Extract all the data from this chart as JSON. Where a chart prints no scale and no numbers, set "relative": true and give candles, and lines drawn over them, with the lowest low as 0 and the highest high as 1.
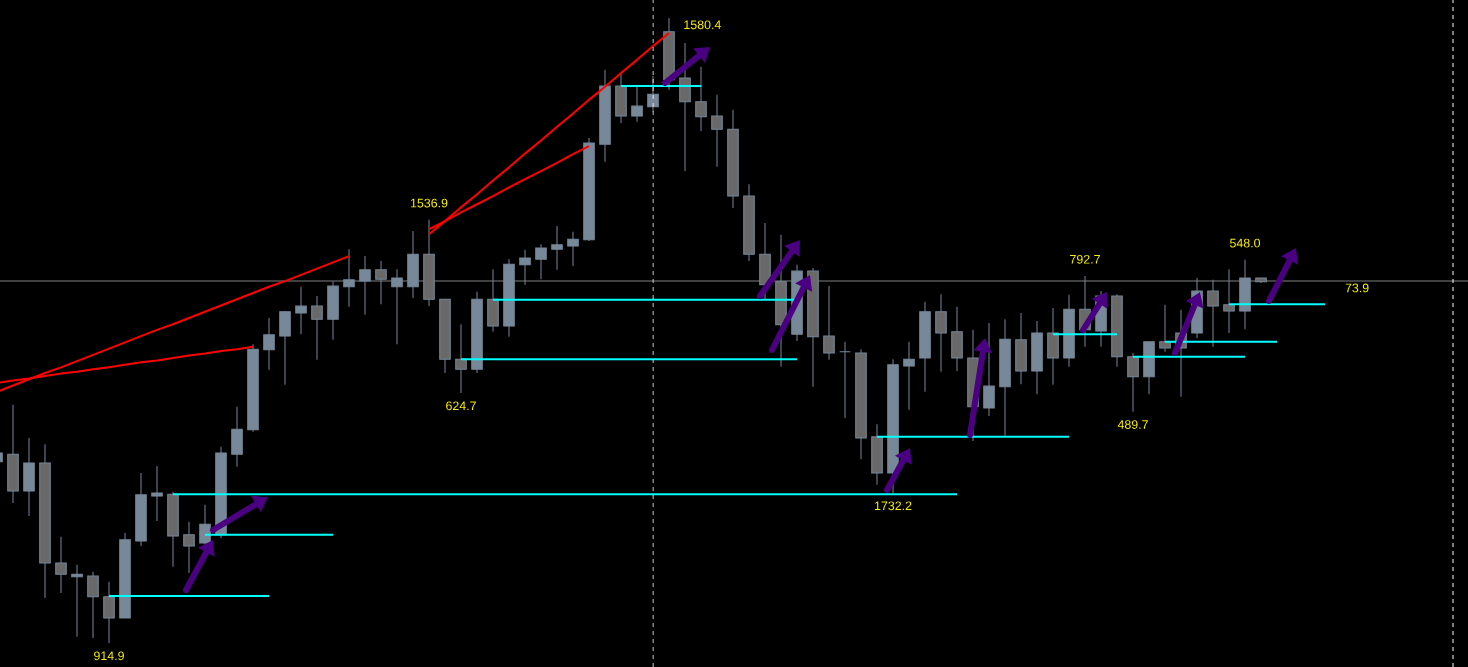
{
  "chart_data": {
    "type": "candlestick",
    "relative": true,
    "tick_labels": false,
    "categories": [
      null,
      null,
      null,
      null,
      null,
      null,
      null,
      null,
      null,
      null,
      null,
      null,
      null,
      null,
      null,
      null,
      null,
      null,
      null,
      null,
      null,
      null,
      null,
      null,
      null,
      null,
      null,
      null,
      null,
      null,
      null,
      null,
      null,
      null,
      null,
      null,
      null,
      null,
      null,
      null,
      null,
      null,
      null,
      null,
      null,
      null,
      null,
      null,
      null,
      null,
      null,
      null,
      null,
      null,
      null,
      null,
      null,
      null,
      null,
      null,
      null,
      null,
      null,
      null,
      null,
      null,
      null,
      null,
      null,
      null,
      null,
      null,
      null,
      null,
      null,
      null,
      null,
      null,
      null,
      null,
      null,
      null,
      null,
      null
    ],
    "ohlc": [
      [
        0.29,
        0.304,
        0.29,
        0.304
      ],
      [
        0.302,
        0.381,
        0.224,
        0.243
      ],
      [
        0.243,
        0.328,
        0.203,
        0.288
      ],
      [
        0.288,
        0.318,
        0.072,
        0.128
      ],
      [
        0.128,
        0.17,
        0.08,
        0.11
      ],
      [
        0.106,
        0.125,
        0.01,
        0.11
      ],
      [
        0.107,
        0.114,
        0.008,
        0.074
      ],
      [
        0.074,
        0.098,
        0,
        0.04
      ],
      [
        0.04,
        0.176,
        0.04,
        0.165
      ],
      [
        0.163,
        0.272,
        0.155,
        0.237
      ],
      [
        0.235,
        0.283,
        0.195,
        0.24
      ],
      [
        0.238,
        0.242,
        0.122,
        0.171
      ],
      [
        0.173,
        0.194,
        0.112,
        0.155
      ],
      [
        0.16,
        0.221,
        0.157,
        0.19
      ],
      [
        0.173,
        0.314,
        0.168,
        0.304
      ],
      [
        0.302,
        0.378,
        0.282,
        0.342
      ],
      [
        0.341,
        0.478,
        0.338,
        0.47
      ],
      [
        0.469,
        0.52,
        0.437,
        0.493
      ],
      [
        0.491,
        0.531,
        0.413,
        0.53
      ],
      [
        0.528,
        0.57,
        0.494,
        0.539
      ],
      [
        0.539,
        0.555,
        0.453,
        0.518
      ],
      [
        0.518,
        0.578,
        0.485,
        0.571
      ],
      [
        0.57,
        0.63,
        0.538,
        0.581
      ],
      [
        0.579,
        0.619,
        0.525,
        0.597
      ],
      [
        0.597,
        0.611,
        0.542,
        0.582
      ],
      [
        0.57,
        0.598,
        0.478,
        0.584
      ],
      [
        0.57,
        0.659,
        0.552,
        0.622
      ],
      [
        0.622,
        0.677,
        0.539,
        0.55
      ],
      [
        0.55,
        0.55,
        0.432,
        0.454
      ],
      [
        0.454,
        0.51,
        0.4,
        0.438
      ],
      [
        0.438,
        0.562,
        0.432,
        0.55
      ],
      [
        0.55,
        0.598,
        0.498,
        0.507
      ],
      [
        0.507,
        0.614,
        0.49,
        0.606
      ],
      [
        0.605,
        0.629,
        0.573,
        0.616
      ],
      [
        0.614,
        0.638,
        0.582,
        0.632
      ],
      [
        0.63,
        0.667,
        0.597,
        0.637
      ],
      [
        0.635,
        0.658,
        0.603,
        0.646
      ],
      [
        0.645,
        0.808,
        0.643,
        0.8
      ],
      [
        0.798,
        0.917,
        0.77,
        0.891
      ],
      [
        0.891,
        0.912,
        0.832,
        0.843
      ],
      [
        0.843,
        0.89,
        0.834,
        0.859
      ],
      [
        0.858,
        0.907,
        0.85,
        0.878
      ],
      [
        0.978,
        1,
        0.885,
        0.901
      ],
      [
        0.904,
        0.96,
        0.755,
        0.866
      ],
      [
        0.866,
        0.922,
        0.819,
        0.842
      ],
      [
        0.843,
        0.877,
        0.762,
        0.822
      ],
      [
        0.822,
        0.853,
        0.696,
        0.715
      ],
      [
        0.715,
        0.734,
        0.611,
        0.622
      ],
      [
        0.622,
        0.672,
        0.549,
        0.573
      ],
      [
        0.578,
        0.653,
        0.442,
        0.509
      ],
      [
        0.494,
        0.605,
        0.483,
        0.595
      ],
      [
        0.595,
        0.6,
        0.41,
        0.49
      ],
      [
        0.491,
        0.571,
        0.453,
        0.464
      ],
      [
        0.466,
        0.482,
        0.36,
        0.466
      ],
      [
        0.464,
        0.47,
        0.294,
        0.328
      ],
      [
        0.33,
        0.35,
        0.253,
        0.272
      ],
      [
        0.272,
        0.454,
        0.24,
        0.445
      ],
      [
        0.443,
        0.482,
        0.373,
        0.454
      ],
      [
        0.456,
        0.546,
        0.402,
        0.53
      ],
      [
        0.53,
        0.558,
        0.434,
        0.496
      ],
      [
        0.498,
        0.538,
        0.435,
        0.456
      ],
      [
        0.456,
        0.501,
        0.323,
        0.378
      ],
      [
        0.376,
        0.512,
        0.363,
        0.411
      ],
      [
        0.41,
        0.518,
        0.331,
        0.486
      ],
      [
        0.485,
        0.528,
        0.414,
        0.435
      ],
      [
        0.435,
        0.515,
        0.398,
        0.496
      ],
      [
        0.496,
        0.536,
        0.413,
        0.456
      ],
      [
        0.456,
        0.557,
        0.442,
        0.534
      ],
      [
        0.534,
        0.587,
        0.474,
        0.501
      ],
      [
        0.499,
        0.563,
        0.474,
        0.555
      ],
      [
        0.555,
        0.558,
        0.442,
        0.458
      ],
      [
        0.458,
        0.464,
        0.37,
        0.426
      ],
      [
        0.426,
        0.482,
        0.398,
        0.482
      ],
      [
        0.482,
        0.541,
        0.466,
        0.472
      ],
      [
        0.496,
        0.533,
        0.394,
        0.472
      ],
      [
        0.496,
        0.584,
        0.488,
        0.563
      ],
      [
        0.563,
        0.581,
        0.474,
        0.539
      ],
      [
        0.541,
        0.598,
        0.496,
        0.531
      ],
      [
        0.531,
        0.613,
        0.502,
        0.584
      ],
      [
        0.584,
        0.584,
        0.576,
        0.578
      ],
      null,
      null,
      null,
      null
    ],
    "color": "#778899",
    "colors": [
      "#778899",
      "#696969",
      "#778899",
      "#696969",
      "#696969",
      "#778899",
      "#696969",
      "#696969",
      "#778899",
      "#778899",
      "#778899",
      "#696969",
      "#696969",
      "#778899",
      "#778899",
      "#778899",
      "#778899",
      "#778899",
      "#778899",
      "#778899",
      "#696969",
      "#778899",
      "#778899",
      "#778899",
      "#696969",
      "#778899",
      "#778899",
      "#696969",
      "#696969",
      "#696969",
      "#778899",
      "#696969",
      "#778899",
      "#778899",
      "#778899",
      "#778899",
      "#778899",
      "#778899",
      "#778899",
      "#696969",
      "#778899",
      "#778899",
      "#696969",
      "#696969",
      "#696969",
      "#696969",
      "#696969",
      "#696969",
      "#696969",
      "#696969",
      "#778899",
      "#696969",
      "#696969",
      "#778899",
      "#696969",
      "#696969",
      "#778899",
      "#778899",
      "#778899",
      "#696969",
      "#696969",
      "#696969",
      "#778899",
      "#778899",
      "#696969",
      "#778899",
      "#696969",
      "#778899",
      "#696969",
      "#778899",
      "#696969",
      "#696969",
      "#778899",
      "#696969",
      "#696969",
      "#778899",
      "#696969",
      "#696969",
      "#778899",
      "#696969",
      null,
      null,
      null,
      null
    ],
    "series": [
      {
        "type": "line",
        "color": "#00ffff",
        "values": [
          null,
          null,
          null,
          null,
          null,
          null,
          null,
          0.075,
          0.075,
          0.075,
          0.075,
          0.075,
          0.075,
          0.075,
          0.075,
          0.075,
          0.075,
          0.075,
          null,
          null,
          null,
          null,
          null,
          null,
          null,
          null,
          null,
          null,
          null,
          null,
          null,
          null,
          null,
          null,
          null,
          null,
          null,
          null,
          null,
          null,
          null,
          null,
          null,
          null,
          null,
          null,
          null,
          null,
          null,
          null,
          null,
          null,
          null,
          null,
          null,
          null,
          null,
          null,
          null,
          null,
          null,
          null,
          null,
          null,
          null,
          null,
          null,
          null,
          null,
          null,
          null,
          null,
          null,
          null,
          null,
          null,
          null,
          null,
          null,
          null,
          null,
          null,
          null,
          null
        ]
      },
      {
        "type": "line",
        "color": "#00ffff",
        "values": [
          null,
          null,
          null,
          null,
          null,
          null,
          null,
          null,
          null,
          null,
          null,
          null,
          null,
          0.173,
          0.173,
          0.173,
          0.173,
          0.173,
          0.173,
          0.173,
          0.173,
          0.173,
          null,
          null,
          null,
          null,
          null,
          null,
          null,
          null,
          null,
          null,
          null,
          null,
          null,
          null,
          null,
          null,
          null,
          null,
          null,
          null,
          null,
          null,
          null,
          null,
          null,
          null,
          null,
          null,
          null,
          null,
          null,
          null,
          null,
          null,
          null,
          null,
          null,
          null,
          null,
          null,
          null,
          null,
          null,
          null,
          null,
          null,
          null,
          null,
          null,
          null,
          null,
          null,
          null,
          null,
          null,
          null,
          null,
          null,
          null,
          null,
          null,
          null
        ]
      },
      {
        "type": "line",
        "color": "#00ffff",
        "values": [
          null,
          null,
          null,
          null,
          null,
          null,
          null,
          null,
          null,
          null,
          null,
          0.238,
          0.238,
          0.238,
          0.238,
          0.238,
          0.238,
          0.238,
          0.238,
          0.238,
          0.238,
          0.238,
          0.238,
          0.238,
          0.238,
          0.238,
          0.238,
          0.238,
          0.238,
          0.238,
          0.238,
          0.238,
          0.238,
          0.238,
          0.238,
          0.238,
          0.238,
          0.238,
          0.238,
          0.238,
          0.238,
          0.238,
          0.238,
          0.238,
          0.238,
          0.238,
          0.238,
          0.238,
          0.238,
          0.238,
          0.238,
          0.238,
          0.238,
          0.238,
          0.238,
          0.238,
          0.238,
          0.238,
          0.238,
          0.238,
          0.238,
          null,
          null,
          null,
          null,
          null,
          null,
          null,
          null,
          null,
          null,
          null,
          null,
          null,
          null,
          null,
          null,
          null,
          null,
          null,
          null,
          null,
          null,
          null
        ]
      },
      {
        "type": "line",
        "color": "#00ffff",
        "values": [
          null,
          null,
          null,
          null,
          null,
          null,
          null,
          null,
          null,
          null,
          null,
          null,
          null,
          null,
          null,
          null,
          null,
          null,
          null,
          null,
          null,
          null,
          null,
          null,
          null,
          null,
          null,
          null,
          null,
          0.454,
          0.454,
          0.454,
          0.454,
          0.454,
          0.454,
          0.454,
          0.454,
          0.454,
          0.454,
          0.454,
          0.454,
          0.454,
          0.454,
          0.454,
          0.454,
          0.454,
          0.454,
          0.454,
          0.454,
          0.454,
          0.454,
          null,
          null,
          null,
          null,
          null,
          null,
          null,
          null,
          null,
          null,
          null,
          null,
          null,
          null,
          null,
          null,
          null,
          null,
          null,
          null,
          null,
          null,
          null,
          null,
          null,
          null,
          null,
          null,
          null,
          null,
          null,
          null,
          null
        ]
      },
      {
        "type": "line",
        "color": "#00ffff",
        "values": [
          null,
          null,
          null,
          null,
          null,
          null,
          null,
          null,
          null,
          null,
          null,
          null,
          null,
          null,
          null,
          null,
          null,
          null,
          null,
          null,
          null,
          null,
          null,
          null,
          null,
          null,
          null,
          null,
          null,
          null,
          null,
          0.549,
          0.549,
          0.549,
          0.549,
          0.549,
          0.549,
          0.549,
          0.549,
          0.549,
          0.549,
          0.549,
          0.549,
          0.549,
          0.549,
          0.549,
          0.549,
          0.549,
          0.549,
          0.549,
          0.549,
          null,
          null,
          null,
          null,
          null,
          null,
          null,
          null,
          null,
          null,
          null,
          null,
          null,
          null,
          null,
          null,
          null,
          null,
          null,
          null,
          null,
          null,
          null,
          null,
          null,
          null,
          null,
          null,
          null,
          null,
          null,
          null,
          null
        ]
      },
      {
        "type": "line",
        "color": "#00ffff",
        "values": [
          null,
          null,
          null,
          null,
          null,
          null,
          null,
          null,
          null,
          null,
          null,
          null,
          null,
          null,
          null,
          null,
          null,
          null,
          null,
          null,
          null,
          null,
          null,
          null,
          null,
          null,
          null,
          null,
          null,
          null,
          null,
          null,
          null,
          null,
          null,
          null,
          null,
          null,
          null,
          0.891,
          0.891,
          0.891,
          0.891,
          0.891,
          0.891,
          null,
          null,
          null,
          null,
          null,
          null,
          null,
          null,
          null,
          null,
          null,
          null,
          null,
          null,
          null,
          null,
          null,
          null,
          null,
          null,
          null,
          null,
          null,
          null,
          null,
          null,
          null,
          null,
          null,
          null,
          null,
          null,
          null,
          null,
          null,
          null,
          null,
          null,
          null
        ]
      },
      {
        "type": "line",
        "color": "#00ffff",
        "values": [
          null,
          null,
          null,
          null,
          null,
          null,
          null,
          null,
          null,
          null,
          null,
          null,
          null,
          null,
          null,
          null,
          null,
          null,
          null,
          null,
          null,
          null,
          null,
          null,
          null,
          null,
          null,
          null,
          null,
          null,
          null,
          null,
          null,
          null,
          null,
          null,
          null,
          null,
          null,
          null,
          null,
          null,
          null,
          null,
          null,
          null,
          null,
          null,
          null,
          null,
          null,
          null,
          null,
          null,
          null,
          0.33,
          0.33,
          0.33,
          0.33,
          0.33,
          0.33,
          0.33,
          0.33,
          0.33,
          0.33,
          0.33,
          0.33,
          0.33,
          null,
          null,
          null,
          null,
          null,
          null,
          null,
          null,
          null,
          null,
          null,
          null,
          null,
          null,
          null,
          null
        ]
      },
      {
        "type": "line",
        "color": "#00ffff",
        "values": [
          null,
          null,
          null,
          null,
          null,
          null,
          null,
          null,
          null,
          null,
          null,
          null,
          null,
          null,
          null,
          null,
          null,
          null,
          null,
          null,
          null,
          null,
          null,
          null,
          null,
          null,
          null,
          null,
          null,
          null,
          null,
          null,
          null,
          null,
          null,
          null,
          null,
          null,
          null,
          null,
          null,
          null,
          null,
          null,
          null,
          null,
          null,
          null,
          null,
          null,
          null,
          null,
          null,
          null,
          null,
          null,
          null,
          null,
          null,
          null,
          null,
          null,
          null,
          null,
          null,
          null,
          0.494,
          0.494,
          0.494,
          0.494,
          0.494,
          null,
          null,
          null,
          null,
          null,
          null,
          null,
          null,
          null,
          null,
          null,
          null,
          null
        ]
      },
      {
        "type": "line",
        "color": "#00ffff",
        "values": [
          null,
          null,
          null,
          null,
          null,
          null,
          null,
          null,
          null,
          null,
          null,
          null,
          null,
          null,
          null,
          null,
          null,
          null,
          null,
          null,
          null,
          null,
          null,
          null,
          null,
          null,
          null,
          null,
          null,
          null,
          null,
          null,
          null,
          null,
          null,
          null,
          null,
          null,
          null,
          null,
          null,
          null,
          null,
          null,
          null,
          null,
          null,
          null,
          null,
          null,
          null,
          null,
          null,
          null,
          null,
          null,
          null,
          null,
          null,
          null,
          null,
          null,
          null,
          null,
          null,
          null,
          null,
          null,
          null,
          null,
          null,
          0.458,
          0.458,
          0.458,
          0.458,
          0.458,
          0.458,
          0.458,
          0.458,
          null,
          null,
          null,
          null,
          null
        ]
      },
      {
        "type": "line",
        "color": "#00ffff",
        "values": [
          null,
          null,
          null,
          null,
          null,
          null,
          null,
          null,
          null,
          null,
          null,
          null,
          null,
          null,
          null,
          null,
          null,
          null,
          null,
          null,
          null,
          null,
          null,
          null,
          null,
          null,
          null,
          null,
          null,
          null,
          null,
          null,
          null,
          null,
          null,
          null,
          null,
          null,
          null,
          null,
          null,
          null,
          null,
          null,
          null,
          null,
          null,
          null,
          null,
          null,
          null,
          null,
          null,
          null,
          null,
          null,
          null,
          null,
          null,
          null,
          null,
          null,
          null,
          null,
          null,
          null,
          null,
          null,
          null,
          null,
          null,
          null,
          null,
          0.482,
          0.482,
          0.482,
          0.482,
          0.482,
          0.482,
          0.482,
          0.482,
          null,
          null,
          null
        ]
      },
      {
        "type": "line",
        "color": "#00ffff",
        "values": [
          null,
          null,
          null,
          null,
          null,
          null,
          null,
          null,
          null,
          null,
          null,
          null,
          null,
          null,
          null,
          null,
          null,
          null,
          null,
          null,
          null,
          null,
          null,
          null,
          null,
          null,
          null,
          null,
          null,
          null,
          null,
          null,
          null,
          null,
          null,
          null,
          null,
          null,
          null,
          null,
          null,
          null,
          null,
          null,
          null,
          null,
          null,
          null,
          null,
          null,
          null,
          null,
          null,
          null,
          null,
          null,
          null,
          null,
          null,
          null,
          null,
          null,
          null,
          null,
          null,
          null,
          null,
          null,
          null,
          null,
          null,
          null,
          null,
          null,
          null,
          null,
          null,
          0.542,
          0.542,
          0.542,
          0.542,
          0.542,
          0.542,
          0.542
        ]
      },
      {
        "type": "line",
        "color": "#ff0000",
        "values": [
          0.402,
          0.412,
          0.422,
          0.432,
          0.441,
          0.451,
          0.461,
          0.471,
          0.481,
          0.491,
          0.501,
          0.51,
          0.52,
          0.53,
          0.54,
          0.55,
          0.56,
          0.57,
          0.579,
          0.589,
          0.599,
          0.609,
          0.619,
          null,
          null,
          null,
          null,
          null,
          null,
          null,
          null,
          null,
          null,
          null,
          null,
          null,
          null,
          null,
          null,
          null,
          null,
          null,
          null,
          null,
          null,
          null,
          null,
          null,
          null,
          null,
          null,
          null,
          null,
          null,
          null,
          null,
          null,
          null,
          null,
          null,
          null,
          null,
          null,
          null,
          null,
          null,
          null,
          null,
          null,
          null,
          null,
          null,
          null,
          null,
          null,
          null,
          null,
          null,
          null,
          null,
          null,
          null,
          null,
          null
        ]
      },
      {
        "type": "line",
        "color": "#ff0000",
        "values": [
          0.416,
          0.42,
          0.423,
          0.427,
          0.431,
          0.434,
          0.438,
          0.441,
          0.445,
          0.449,
          0.452,
          0.456,
          0.46,
          0.463,
          0.467,
          0.47,
          0.474,
          null,
          null,
          null,
          null,
          null,
          null,
          null,
          null,
          null,
          null,
          null,
          null,
          null,
          null,
          null,
          null,
          null,
          null,
          null,
          null,
          null,
          null,
          null,
          null,
          null,
          null,
          null,
          null,
          null,
          null,
          null,
          null,
          null,
          null,
          null,
          null,
          null,
          null,
          null,
          null,
          null,
          null,
          null,
          null,
          null,
          null,
          null,
          null,
          null,
          null,
          null,
          null,
          null,
          null,
          null,
          null,
          null,
          null,
          null,
          null,
          null,
          null,
          null,
          null,
          null,
          null,
          null
        ]
      },
      {
        "type": "line",
        "color": "#ff0000",
        "values": [
          null,
          null,
          null,
          null,
          null,
          null,
          null,
          null,
          null,
          null,
          null,
          null,
          null,
          null,
          null,
          null,
          null,
          null,
          null,
          null,
          null,
          null,
          null,
          null,
          null,
          null,
          null,
          0.654,
          0.675,
          0.697,
          0.718,
          0.74,
          0.761,
          0.783,
          0.804,
          0.826,
          0.847,
          0.869,
          0.89,
          0.912,
          0.933,
          0.955,
          0.976,
          null,
          null,
          null,
          null,
          null,
          null,
          null,
          null,
          null,
          null,
          null,
          null,
          null,
          null,
          null,
          null,
          null,
          null,
          null,
          null,
          null,
          null,
          null,
          null,
          null,
          null,
          null,
          null,
          null,
          null,
          null,
          null,
          null,
          null,
          null,
          null,
          null,
          null,
          null,
          null,
          null
        ]
      },
      {
        "type": "line",
        "color": "#ff0000",
        "values": [
          null,
          null,
          null,
          null,
          null,
          null,
          null,
          null,
          null,
          null,
          null,
          null,
          null,
          null,
          null,
          null,
          null,
          null,
          null,
          null,
          null,
          null,
          null,
          null,
          null,
          null,
          null,
          0.662,
          0.675,
          0.689,
          0.702,
          0.715,
          0.729,
          0.742,
          0.755,
          0.768,
          0.782,
          0.795,
          null,
          null,
          null,
          null,
          null,
          null,
          null,
          null,
          null,
          null,
          null,
          null,
          null,
          null,
          null,
          null,
          null,
          null,
          null,
          null,
          null,
          null,
          null,
          null,
          null,
          null,
          null,
          null,
          null,
          null,
          null,
          null,
          null,
          null,
          null,
          null,
          null,
          null,
          null,
          null,
          null,
          null,
          null,
          null,
          null,
          null
        ]
      }
    ],
    "ref_lines": [
      {
        "axis": "y",
        "value": 0.579,
        "color": "#808080"
      }
    ],
    "annotations": [
      "914.9",
      "1536.9",
      "624.7",
      "1580.4",
      "1732.2",
      "792.7",
      "489.7",
      "548.0",
      "73.9"
    ]
  }
}
